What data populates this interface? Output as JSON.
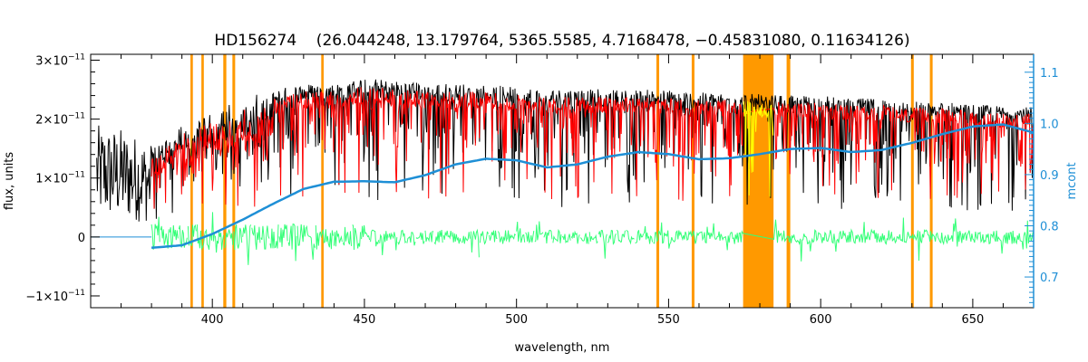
{
  "chart_data": {
    "type": "line",
    "title": "HD156274    (26.044248, 13.179764, 5365.5585, 4.7168478, −0.45831080, 0.11634126)",
    "xlabel": "wavelength, nm",
    "ylabel": "flux, units",
    "y2label": "mcont",
    "xlim": [
      360,
      670
    ],
    "ylim": [
      -1.2e-11,
      3.1e-11
    ],
    "y2lim": [
      0.64,
      1.135
    ],
    "x_ticks": [
      400,
      450,
      500,
      550,
      600,
      650
    ],
    "x_tick_labels": [
      "400",
      "450",
      "500",
      "550",
      "600",
      "650"
    ],
    "y_ticks": [
      -1e-11,
      0,
      1e-11,
      2e-11,
      3e-11
    ],
    "y_tick_labels": [
      {
        "mant": "−1×10",
        "exp": "−11"
      },
      {
        "mant": "0",
        "exp": ""
      },
      {
        "mant": "1×10",
        "exp": "−11"
      },
      {
        "mant": "2×10",
        "exp": "−11"
      },
      {
        "mant": "3×10",
        "exp": "−11"
      }
    ],
    "y2_ticks": [
      0.7,
      0.8,
      0.9,
      1.0,
      1.1
    ],
    "y2_tick_labels": [
      "0.7",
      "0.8",
      "0.9",
      "1.0",
      "1.1"
    ],
    "colors": {
      "observed": "#000000",
      "model": "#ff0000",
      "masked_model": "#ffff00",
      "residuals": "#33ff77",
      "continuum": "#1e8fd6",
      "mask_bands": "#ff9900",
      "right_axis": "#1e8fd6"
    },
    "mask_bands": [
      [
        392.8,
        393.6
      ],
      [
        396.4,
        397.2
      ],
      [
        403.6,
        404.6
      ],
      [
        406.6,
        407.5
      ],
      [
        435.8,
        436.6
      ],
      [
        546.0,
        546.9
      ],
      [
        557.6,
        558.5
      ],
      [
        574.5,
        584.5
      ],
      [
        588.8,
        589.5
      ],
      [
        589.4,
        590.0
      ],
      [
        629.7,
        630.6
      ],
      [
        635.9,
        636.8
      ]
    ],
    "continuum_y2": {
      "x": [
        380,
        390,
        400,
        410,
        420,
        430,
        440,
        450,
        460,
        470,
        480,
        490,
        500,
        510,
        520,
        530,
        540,
        550,
        560,
        570,
        580,
        590,
        600,
        610,
        620,
        630,
        640,
        650,
        660,
        670
      ],
      "y": [
        0.757,
        0.762,
        0.784,
        0.812,
        0.843,
        0.872,
        0.886,
        0.887,
        0.885,
        0.899,
        0.92,
        0.931,
        0.928,
        0.914,
        0.92,
        0.935,
        0.944,
        0.94,
        0.93,
        0.932,
        0.94,
        0.95,
        0.952,
        0.944,
        0.948,
        0.962,
        0.979,
        0.994,
        0.998,
        0.982
      ]
    },
    "observed_envelope": {
      "x": [
        362,
        370,
        380,
        390,
        400,
        410,
        420,
        430,
        440,
        450,
        460,
        470,
        480,
        490,
        500,
        510,
        520,
        530,
        540,
        550,
        560,
        570,
        580,
        590,
        600,
        610,
        620,
        630,
        640,
        650,
        660,
        670
      ],
      "y": [
        1.9e-11,
        1.85e-11,
        1.6e-11,
        1.9e-11,
        2.2e-11,
        2.4e-11,
        2.5e-11,
        2.6e-11,
        2.6e-11,
        2.7e-11,
        2.65e-11,
        2.62e-11,
        2.6e-11,
        2.58e-11,
        2.55e-11,
        2.5e-11,
        2.52e-11,
        2.5e-11,
        2.5e-11,
        2.5e-11,
        2.45e-11,
        2.45e-11,
        2.42e-11,
        2.4e-11,
        2.4e-11,
        2.35e-11,
        2.35e-11,
        2.3e-11,
        2.3e-11,
        2.25e-11,
        2.22e-11,
        2.2e-11
      ]
    },
    "residual_level": 0
  }
}
